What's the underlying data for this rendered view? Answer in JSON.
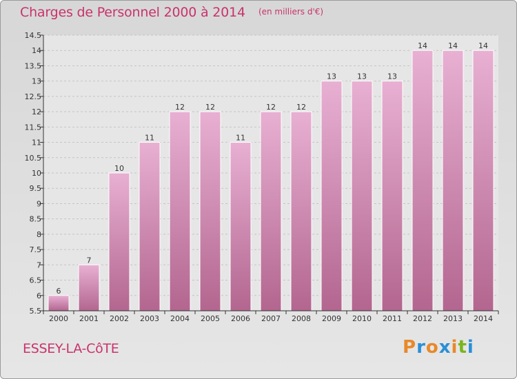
{
  "header": {
    "title": "Charges de Personnel 2000 à 2014",
    "unit": "(en milliers d'€)"
  },
  "footer": {
    "commune": "ESSEY-LA-CôTE",
    "brand": "Proxiti",
    "brand_colors": [
      "#e8892a",
      "#2a8fd6",
      "#e8892a",
      "#2a8fd6",
      "#e8892a",
      "#7ab51d",
      "#2a8fd6"
    ]
  },
  "colors": {
    "bar_light": "#e8b0d3",
    "bar_dark": "#b3668f",
    "title": "#c8336b",
    "plot_bg": "#e6e6e6",
    "gridline": "#c4c4c4"
  },
  "chart_data": {
    "type": "bar",
    "categories": [
      "2000",
      "2001",
      "2002",
      "2003",
      "2004",
      "2005",
      "2006",
      "2007",
      "2008",
      "2009",
      "2010",
      "2011",
      "2012",
      "2013",
      "2014"
    ],
    "values": [
      6,
      7,
      10,
      11,
      12,
      12,
      11,
      12,
      12,
      13,
      13,
      13,
      14,
      14,
      14
    ],
    "data_labels": [
      "6",
      "7",
      "10",
      "11",
      "12",
      "12",
      "11",
      "12",
      "12",
      "13",
      "13",
      "13",
      "14",
      "14",
      "14"
    ],
    "ylim": [
      5.5,
      14.5
    ],
    "yticks": [
      5.5,
      6,
      6.5,
      7,
      7.5,
      8,
      8.5,
      9,
      9.5,
      10,
      10.5,
      11,
      11.5,
      12,
      12.5,
      13,
      13.5,
      14,
      14.5
    ],
    "ytick_labels": [
      "5.5",
      "6",
      "6.5",
      "7",
      "7.5",
      "8",
      "8.5",
      "9",
      "9.5",
      "10",
      "10.5",
      "11",
      "11.5",
      "12",
      "12.5",
      "13",
      "13.5",
      "14",
      "14.5"
    ],
    "grid": true,
    "title": "Charges de Personnel 2000 à 2014",
    "xlabel": "",
    "ylabel": ""
  }
}
